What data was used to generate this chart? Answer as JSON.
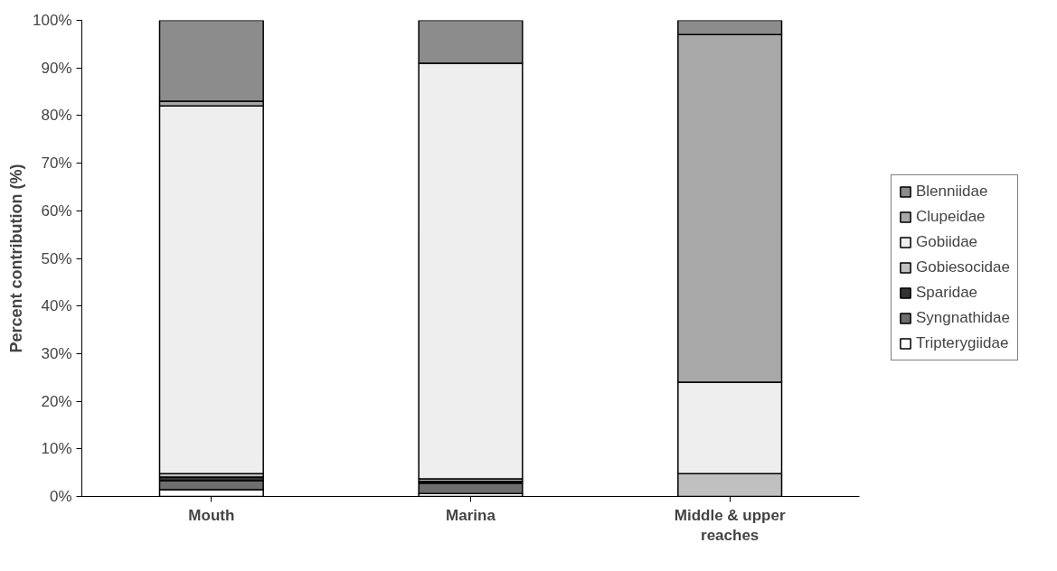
{
  "chart_data": {
    "type": "bar",
    "stacked": true,
    "ylabel": "Percent contribution (%)",
    "categories": [
      "Mouth",
      "Marina",
      "Middle & upper reaches"
    ],
    "series": [
      {
        "name": "Tripterygiidae",
        "color": "#ffffff",
        "values": [
          1.4,
          0.6,
          0
        ]
      },
      {
        "name": "Syngnathidae",
        "color": "#6e6e6e",
        "values": [
          1.9,
          2.2,
          0
        ]
      },
      {
        "name": "Sparidae",
        "color": "#333333",
        "values": [
          0.8,
          0.4,
          0
        ]
      },
      {
        "name": "Gobiesocidae",
        "color": "#c0c0c0",
        "values": [
          0.7,
          0.5,
          4.8
        ]
      },
      {
        "name": "Gobiidae",
        "color": "#eeeeee",
        "values": [
          77.2,
          87.3,
          19.2
        ]
      },
      {
        "name": "Clupeidae",
        "color": "#a8a8a8",
        "values": [
          1.0,
          0,
          73.0
        ]
      },
      {
        "name": "Blenniidae",
        "color": "#8c8c8c",
        "values": [
          17.0,
          9.0,
          3.0
        ]
      }
    ],
    "ylim": [
      0,
      100
    ],
    "yticks": [
      {
        "value": 0,
        "label": "0%"
      },
      {
        "value": 10,
        "label": "10%"
      },
      {
        "value": 20,
        "label": "20%"
      },
      {
        "value": 30,
        "label": "30%"
      },
      {
        "value": 40,
        "label": "40%"
      },
      {
        "value": 50,
        "label": "50%"
      },
      {
        "value": 60,
        "label": "60%"
      },
      {
        "value": 70,
        "label": "70%"
      },
      {
        "value": 80,
        "label": "80%"
      },
      {
        "value": 90,
        "label": "90%"
      },
      {
        "value": 100,
        "label": "100%"
      }
    ],
    "grid": false,
    "legend": "right"
  }
}
